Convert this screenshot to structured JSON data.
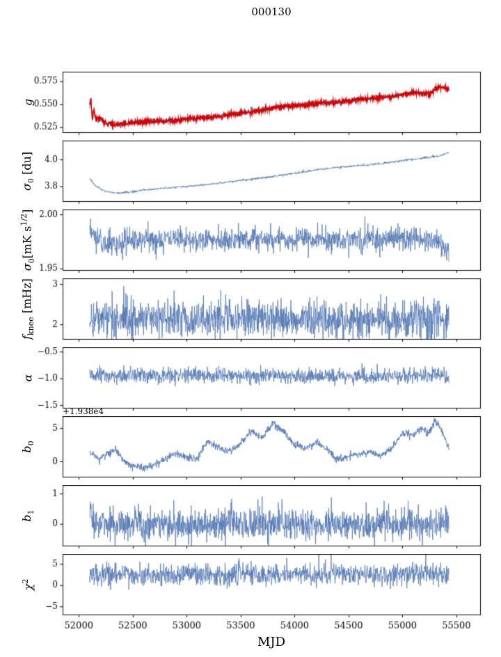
{
  "figure": {
    "title": "000130"
  },
  "chart_data": {
    "type": "line",
    "x_axis": {
      "label": "MJD",
      "xlim": [
        51850,
        55720
      ],
      "ticks": [
        52000,
        52500,
        53000,
        53500,
        54000,
        54500,
        55000,
        55500
      ],
      "tick_labels": [
        "52000",
        "52500",
        "53000",
        "53500",
        "54000",
        "54500",
        "55000",
        "55500"
      ]
    },
    "panels": [
      {
        "name": "g",
        "ylabel_html": "<i>g</i>",
        "ylim": [
          0.5195,
          0.5855
        ],
        "yticks": [
          0.525,
          0.55,
          0.575
        ],
        "ytick_labels": [
          "0.525",
          "0.550",
          "0.575"
        ],
        "show_xticklabels": false,
        "series": [
          {
            "name": "model",
            "color": "#4c72b0",
            "lw": 1.0,
            "noise": 0.0016,
            "seed": 11,
            "trend_x": [
              52100,
              52112,
              52125,
              52140,
              52158,
              52180,
              52210,
              52260,
              52330,
              52420,
              52520,
              52620,
              52720,
              52820,
              52920,
              53020,
              53120,
              53220,
              53320,
              53420,
              53520,
              53620,
              53720,
              53820,
              53920,
              54020,
              54120,
              54220,
              54320,
              54420,
              54520,
              54620,
              54720,
              54820,
              54920,
              55020,
              55100,
              55160,
              55220,
              55260,
              55320,
              55360,
              55430
            ],
            "trend_y": [
              0.548,
              0.556,
              0.534,
              0.545,
              0.533,
              0.5355,
              0.5335,
              0.5295,
              0.5278,
              0.5293,
              0.5306,
              0.5312,
              0.5318,
              0.5323,
              0.5331,
              0.5346,
              0.5352,
              0.5362,
              0.5374,
              0.5398,
              0.5409,
              0.5426,
              0.5446,
              0.5466,
              0.548,
              0.5491,
              0.5497,
              0.5516,
              0.5519,
              0.5529,
              0.5546,
              0.5559,
              0.5573,
              0.5585,
              0.5591,
              0.5616,
              0.5629,
              0.5624,
              0.5616,
              0.5627,
              0.5686,
              0.5696,
              0.567
            ]
          },
          {
            "name": "data",
            "color": "#d40000",
            "lw": 1.5,
            "noise": 0.0013,
            "seed": 12,
            "trend_x": [
              52100,
              52112,
              52125,
              52140,
              52158,
              52180,
              52210,
              52260,
              52330,
              52420,
              52520,
              52620,
              52720,
              52820,
              52920,
              53020,
              53120,
              53220,
              53320,
              53420,
              53520,
              53620,
              53720,
              53820,
              53920,
              54020,
              54120,
              54220,
              54320,
              54420,
              54520,
              54620,
              54720,
              54820,
              54920,
              55020,
              55100,
              55160,
              55220,
              55260,
              55320,
              55360,
              55430
            ],
            "trend_y": [
              0.548,
              0.556,
              0.534,
              0.545,
              0.533,
              0.5355,
              0.5335,
              0.5295,
              0.5278,
              0.5293,
              0.5306,
              0.5312,
              0.5318,
              0.5323,
              0.5331,
              0.5346,
              0.5352,
              0.5362,
              0.5374,
              0.5398,
              0.5409,
              0.5426,
              0.5446,
              0.5466,
              0.548,
              0.5491,
              0.5497,
              0.5516,
              0.5519,
              0.5529,
              0.5546,
              0.5559,
              0.5573,
              0.5585,
              0.5591,
              0.5616,
              0.5629,
              0.5624,
              0.5616,
              0.5627,
              0.5686,
              0.5696,
              0.567
            ]
          }
        ]
      },
      {
        "name": "sigma0_du",
        "ylabel_html": "<i>σ</i><sub>0</sub> [du]",
        "ylim": [
          3.69,
          4.14
        ],
        "yticks": [
          3.8,
          4.0
        ],
        "ytick_labels": [
          "3.8",
          "4.0"
        ],
        "show_xticklabels": false,
        "series": [
          {
            "name": "sigma0_du",
            "color": "#4c72b0",
            "lw": 0.9,
            "noise": 0.004,
            "seed": 21,
            "trend_x": [
              52100,
              52160,
              52250,
              52350,
              52460,
              52600,
              52800,
              53000,
              53200,
              53400,
              53600,
              53800,
              54000,
              54200,
              54400,
              54600,
              54800,
              55000,
              55200,
              55350,
              55430
            ],
            "trend_y": [
              3.862,
              3.8,
              3.765,
              3.752,
              3.758,
              3.774,
              3.79,
              3.802,
              3.816,
              3.836,
              3.856,
              3.876,
              3.9,
              3.925,
              3.944,
              3.956,
              3.97,
              3.996,
              4.012,
              4.03,
              4.056
            ]
          }
        ]
      },
      {
        "name": "sigma0_mks",
        "ylabel_html": "<i>σ</i><sub>0</sub>[mK s<sup>1/2</sup>]",
        "ylim": [
          1.9486,
          2.0045
        ],
        "yticks": [
          1.95,
          2.0
        ],
        "ytick_labels": [
          "1.95",
          "2.00"
        ],
        "show_xticklabels": false,
        "series": [
          {
            "name": "sigma0_mks",
            "color": "#4c72b0",
            "lw": 0.8,
            "noise": 0.0055,
            "seed": 31,
            "trend_x": [
              52100,
              52160,
              52300,
              52500,
              52800,
              53100,
              53500,
              54000,
              54500,
              55000,
              55250,
              55430
            ],
            "trend_y": [
              1.986,
              1.978,
              1.972,
              1.976,
              1.977,
              1.9775,
              1.977,
              1.978,
              1.9765,
              1.978,
              1.9775,
              1.967
            ]
          }
        ]
      },
      {
        "name": "f_knee",
        "ylabel_html": "<i>f</i><sub>knee</sub> [mHz]",
        "ylim": [
          1.64,
          3.14
        ],
        "yticks": [
          2,
          3
        ],
        "ytick_labels": [
          "2",
          "3"
        ],
        "show_xticklabels": false,
        "series": [
          {
            "name": "f_knee",
            "color": "#4c72b0",
            "lw": 0.8,
            "noise": 0.24,
            "seed": 41,
            "trend_x": [
              52100,
              53800,
              55430
            ],
            "trend_y": [
              2.17,
              2.15,
              2.12
            ]
          }
        ]
      },
      {
        "name": "alpha",
        "ylabel_html": "<i>α</i>",
        "ylim": [
          -1.55,
          -0.42
        ],
        "yticks": [
          -1.5,
          -1.0,
          -0.5
        ],
        "ytick_labels": [
          "−1.5",
          "−1.0",
          "−0.5"
        ],
        "show_xticklabels": false,
        "series": [
          {
            "name": "alpha",
            "color": "#4c72b0",
            "lw": 0.8,
            "noise": 0.07,
            "seed": 51,
            "trend_x": [
              52100,
              55430
            ],
            "trend_y": [
              -0.95,
              -0.95
            ]
          }
        ]
      },
      {
        "name": "b0",
        "ylabel_html": "<i>b</i><sub>0</sub>",
        "offset_text": "+1.938e4",
        "ylim": [
          -2.3,
          6.8
        ],
        "yticks": [
          0,
          5
        ],
        "ytick_labels": [
          "0",
          "5"
        ],
        "show_xticklabels": false,
        "series": [
          {
            "name": "b0",
            "color": "#4c72b0",
            "lw": 0.9,
            "noise": 0.28,
            "seed": 61,
            "trend_x": [
              52100,
              52180,
              52260,
              52340,
              52420,
              52500,
              52600,
              52700,
              52800,
              52900,
              53000,
              53100,
              53200,
              53300,
              53400,
              53500,
              53600,
              53700,
              53800,
              53900,
              54000,
              54100,
              54200,
              54300,
              54400,
              54500,
              54600,
              54700,
              54800,
              54900,
              55000,
              55100,
              55160,
              55240,
              55300,
              55360,
              55430
            ],
            "trend_y": [
              1.5,
              0.4,
              1.2,
              1.8,
              0.2,
              -0.6,
              -1.0,
              -0.5,
              0.3,
              1.2,
              0.6,
              0.5,
              3.3,
              2.0,
              1.5,
              2.7,
              4.6,
              3.6,
              5.8,
              4.5,
              2.5,
              2.0,
              3.0,
              1.8,
              0.3,
              0.8,
              1.2,
              1.5,
              0.9,
              2.0,
              4.4,
              4.0,
              5.0,
              4.2,
              6.2,
              5.0,
              2.0
            ]
          }
        ]
      },
      {
        "name": "b1",
        "ylabel_html": "<i>b</i><sub>1</sub>",
        "ylim": [
          -0.72,
          1.28
        ],
        "yticks": [
          0,
          1
        ],
        "ytick_labels": [
          "0",
          "1"
        ],
        "show_xticklabels": false,
        "series": [
          {
            "name": "b1",
            "color": "#4c72b0",
            "lw": 0.8,
            "noise": 0.27,
            "seed": 71,
            "trend_x": [
              52100,
              52110,
              52122,
              52140,
              52170,
              55430
            ],
            "trend_y": [
              0.1,
              0.95,
              0.15,
              0.0,
              0.0,
              0.0
            ]
          }
        ]
      },
      {
        "name": "chi2",
        "ylabel_html": "<i>χ</i><sup>2</sup>",
        "ylim": [
          -6.9,
          7.3
        ],
        "yticks": [
          -5,
          0,
          5
        ],
        "ytick_labels": [
          "−5",
          "0",
          "5"
        ],
        "show_xticklabels": true,
        "series": [
          {
            "name": "chi2",
            "color": "#4c72b0",
            "lw": 0.8,
            "noise": 1.25,
            "seed": 81,
            "trend_x": [
              52100,
              52400,
              52700,
              53000,
              53300,
              53600,
              54000,
              54400,
              54800,
              55200,
              55430
            ],
            "trend_y": [
              2.4,
              2.8,
              2.2,
              2.9,
              2.4,
              2.8,
              2.5,
              2.9,
              2.3,
              3.1,
              2.7
            ]
          }
        ]
      }
    ]
  }
}
